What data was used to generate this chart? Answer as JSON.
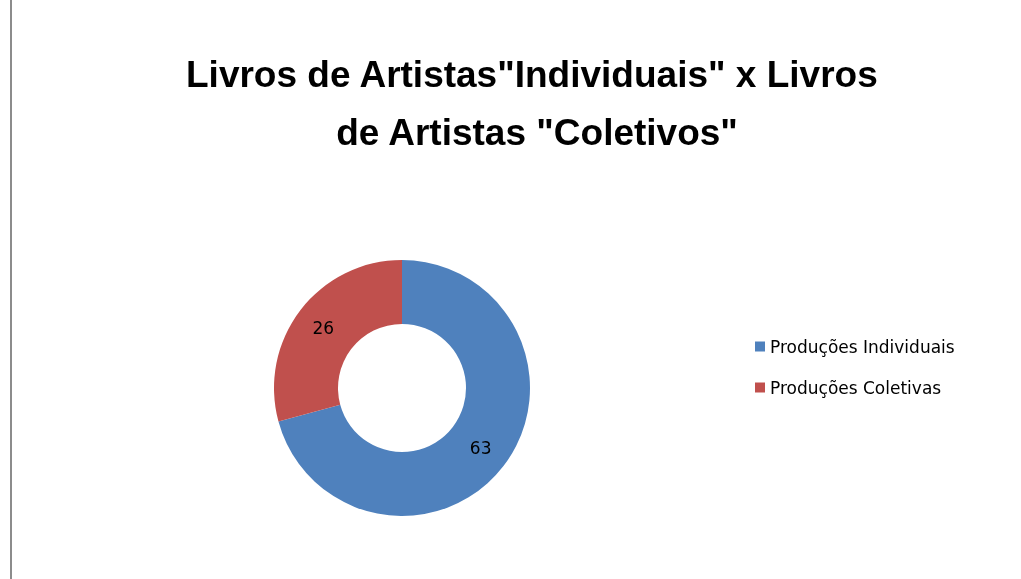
{
  "chart_data": {
    "type": "donut",
    "title": "Livros de Artistas\"Individuais\" x Livros de Artistas \"Coletivos\"",
    "categories": [
      "Produções Individuais",
      "Produções Coletivas"
    ],
    "values": [
      63,
      26
    ],
    "colors": [
      "#4f81bd",
      "#c0504d"
    ],
    "data_labels": true,
    "legend": "right"
  }
}
